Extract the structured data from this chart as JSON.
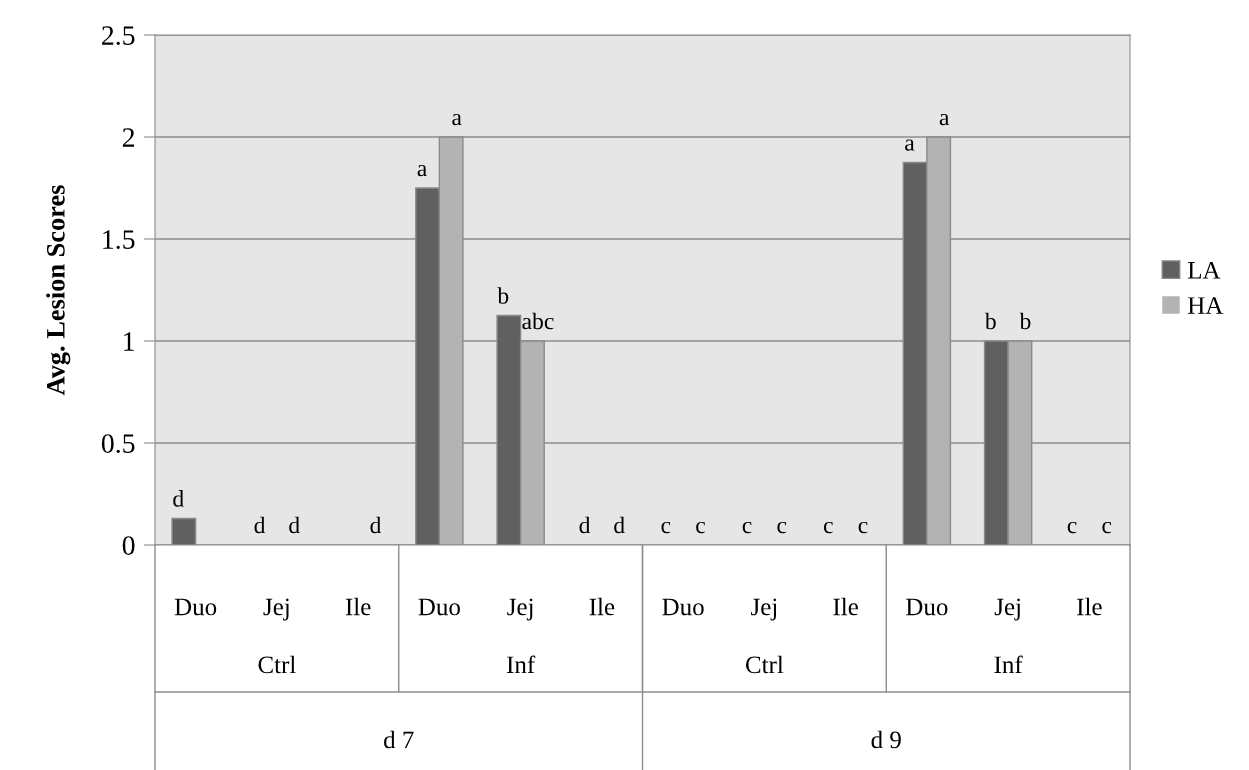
{
  "chart_data": {
    "type": "bar",
    "ylabel": "Avg. Lesion Scores",
    "categories": [
      "Duo",
      "Jej",
      "Ile",
      "Duo",
      "Jej",
      "Ile",
      "Duo",
      "Jej",
      "Ile",
      "Duo",
      "Jej",
      "Ile"
    ],
    "series": [
      {
        "name": "LA",
        "color": "#606060",
        "values": [
          0.13,
          0,
          0,
          1.75,
          1.125,
          0,
          0,
          0,
          0,
          1.875,
          1,
          0
        ],
        "value_labels": [
          "d",
          "d",
          null,
          "a",
          "b",
          "d",
          "c",
          "c",
          "c",
          "a",
          "b",
          "c"
        ]
      },
      {
        "name": "HA",
        "color": "#b3b3b3",
        "values": [
          0,
          0,
          0,
          2,
          1,
          0,
          0,
          0,
          0,
          2,
          1,
          0
        ],
        "value_labels": [
          null,
          "d",
          "d",
          "a",
          "abc",
          "d",
          "c",
          "c",
          "c",
          "a",
          "b",
          "c"
        ]
      }
    ],
    "annotations": [
      "Ctrl",
      "Inf",
      "Ctrl",
      "Inf",
      "d 7",
      "d 9"
    ],
    "ylim": [
      0,
      2.5
    ],
    "yticks": [
      0,
      0.5,
      1,
      1.5,
      2,
      2.5
    ],
    "grid": "y",
    "legend": "right"
  }
}
